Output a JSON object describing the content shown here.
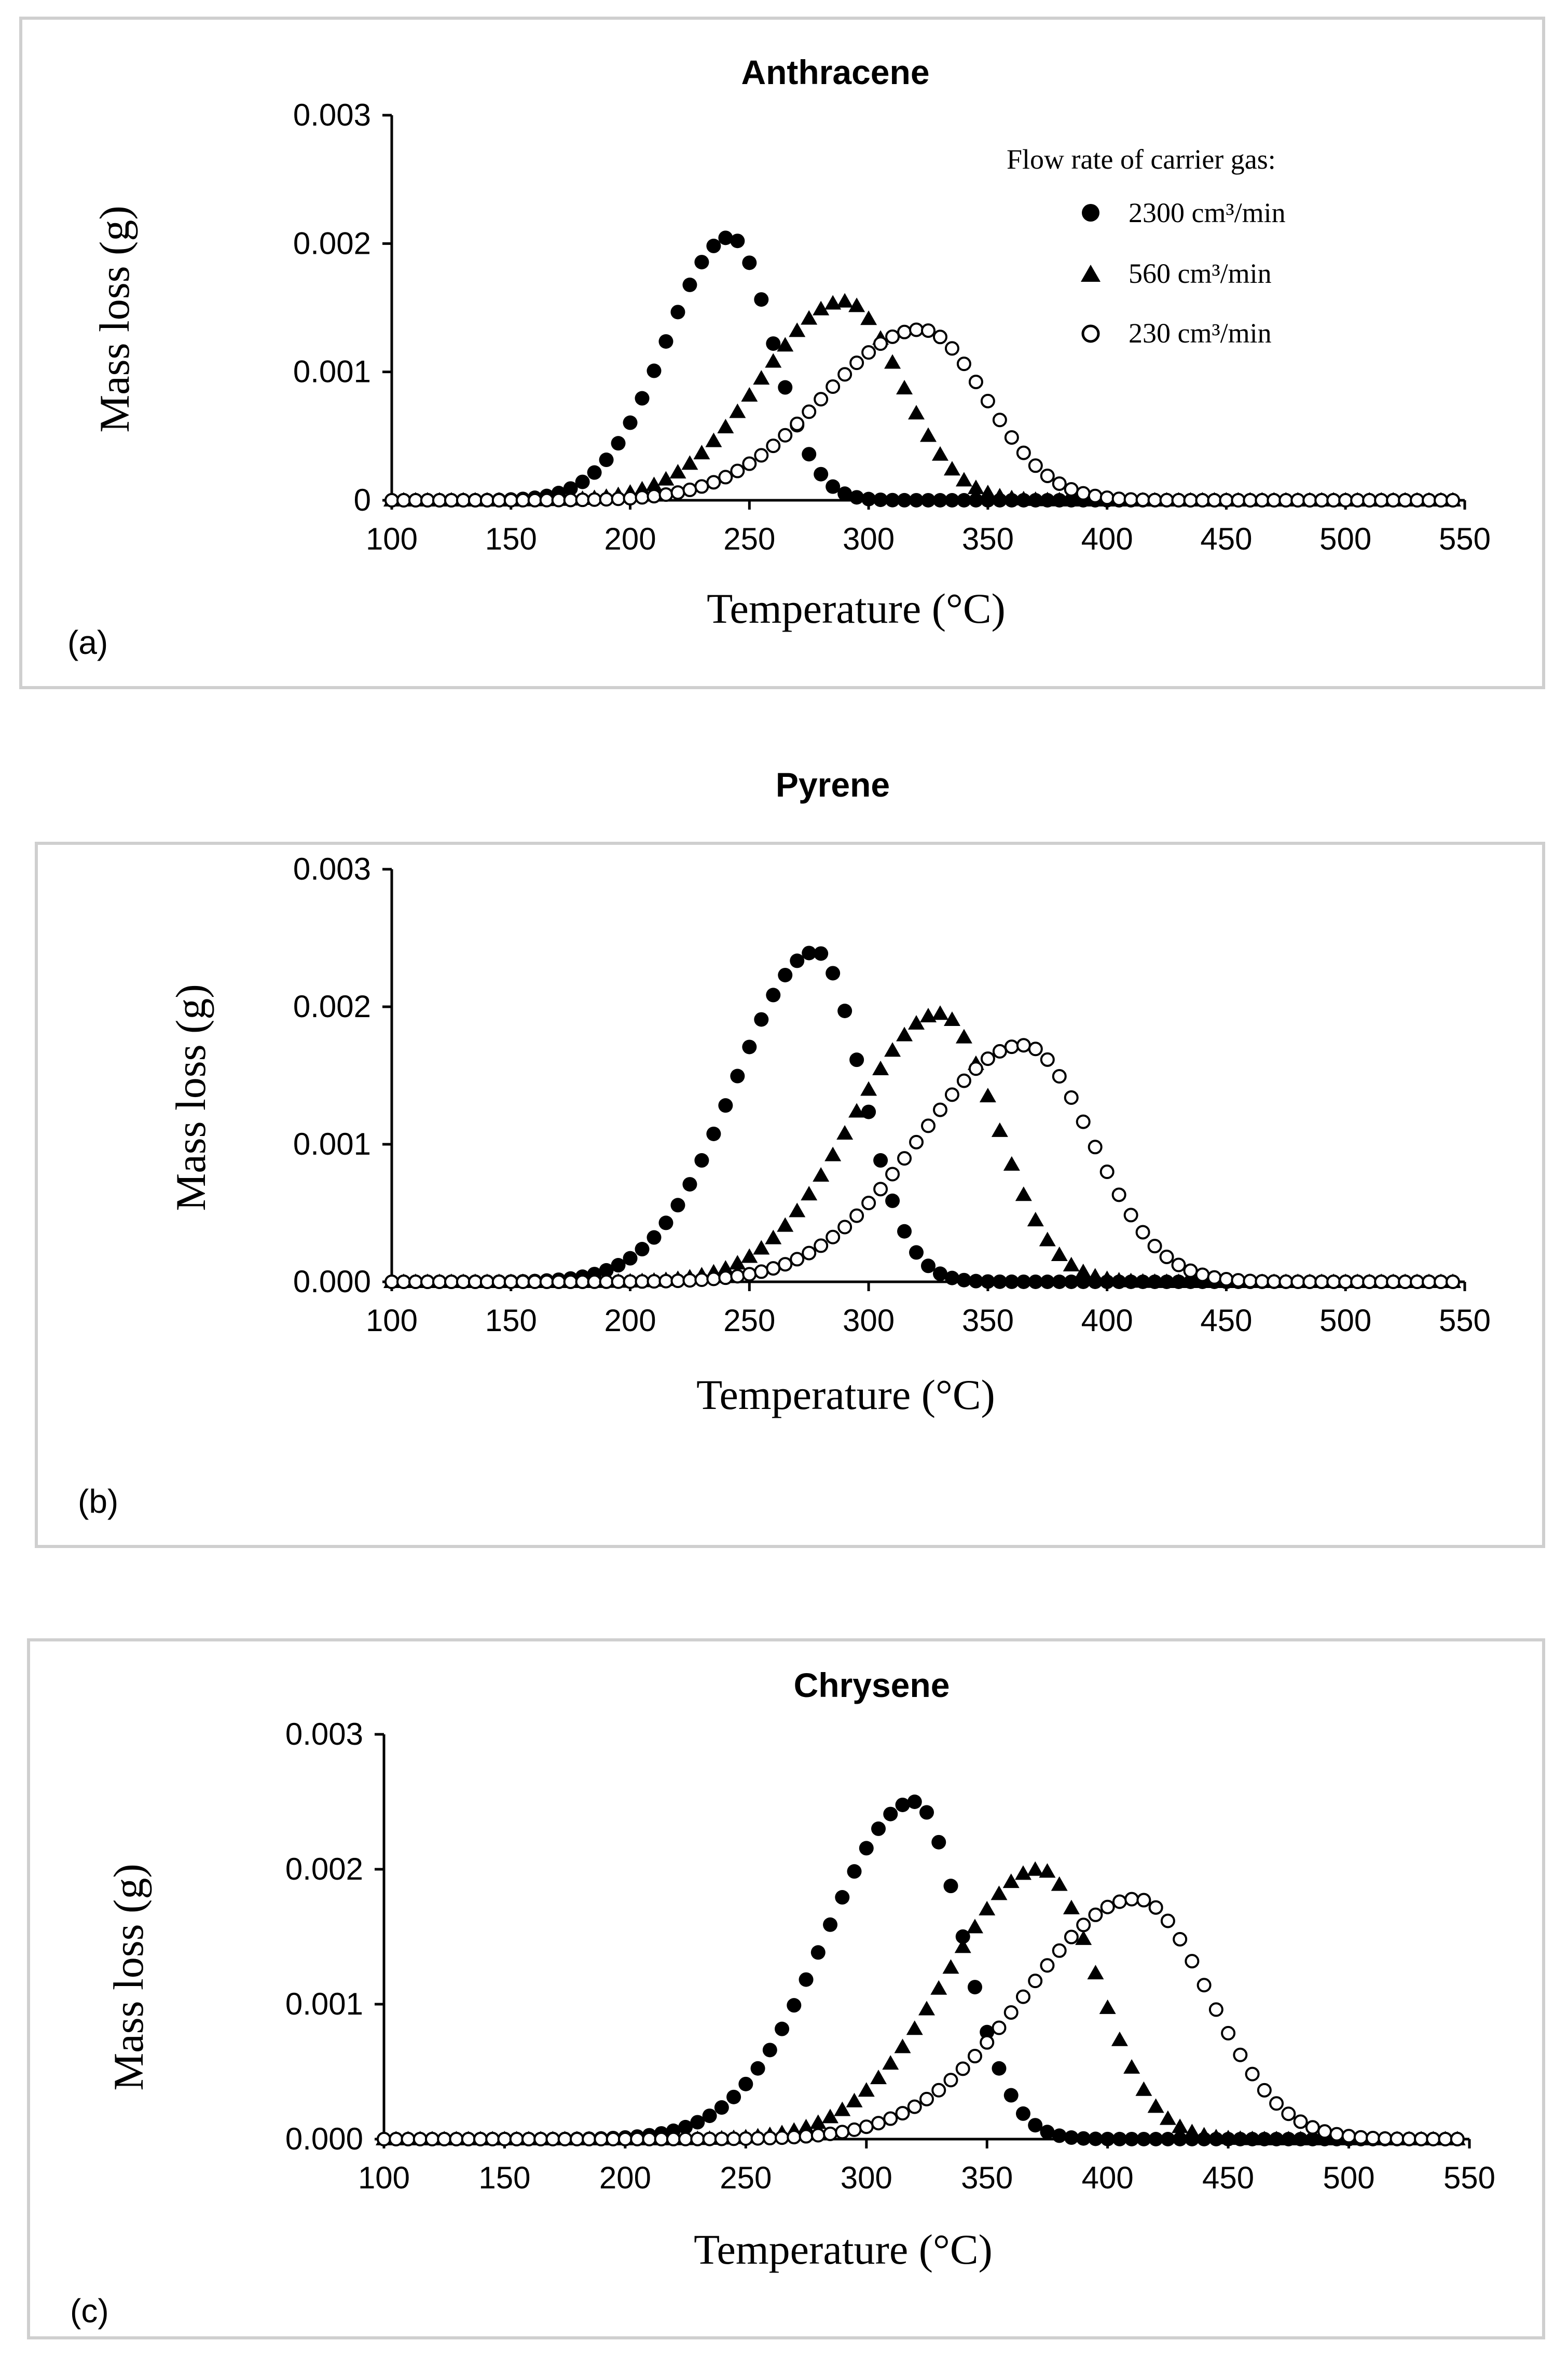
{
  "legend": {
    "title": "Flow rate of carrier gas:",
    "entries": [
      "2300 cm³/min",
      "560 cm³/min",
      "230 cm³/min"
    ]
  },
  "chart_data": [
    {
      "type": "scatter",
      "panel_label": "(a)",
      "title": "Anthracene",
      "xlabel": "Temperature (°C)",
      "ylabel": "Mass loss (g)",
      "xlim": [
        100,
        550
      ],
      "ylim": [
        0,
        0.003
      ],
      "xticks": [
        "100",
        "150",
        "200",
        "250",
        "300",
        "350",
        "400",
        "450",
        "500",
        "550"
      ],
      "yticks": [
        "0",
        "0.001",
        "0.002",
        "0.003"
      ],
      "x_start": 100,
      "x_step": 5,
      "x_end": 545,
      "series": [
        {
          "name": "2300 cm³/min",
          "marker": "circle-filled",
          "peak_x": 242,
          "peak_y": 0.00205,
          "left_width": 38,
          "right_width": 25
        },
        {
          "name": "560 cm³/min",
          "marker": "triangle-filled",
          "peak_x": 290,
          "peak_y": 0.00155,
          "left_width": 50,
          "right_width": 33
        },
        {
          "name": "230 cm³/min",
          "marker": "circle-open",
          "peak_x": 322,
          "peak_y": 0.00133,
          "left_width": 58,
          "right_width": 38
        }
      ]
    },
    {
      "type": "scatter",
      "panel_label": "(b)",
      "title": "Pyrene",
      "xlabel": "Temperature (°C)",
      "ylabel": "Mass loss  (g)",
      "xlim": [
        100,
        550
      ],
      "ylim": [
        0,
        0.003
      ],
      "xticks": [
        "100",
        "150",
        "200",
        "250",
        "300",
        "350",
        "400",
        "450",
        "500",
        "550"
      ],
      "yticks": [
        "0.000",
        "0.001",
        "0.002",
        "0.003"
      ],
      "x_start": 100,
      "x_step": 5,
      "x_end": 545,
      "series": [
        {
          "name": "2300 cm³/min",
          "marker": "circle-filled",
          "peak_x": 278,
          "peak_y": 0.0024,
          "left_width": 48,
          "right_width": 27
        },
        {
          "name": "560 cm³/min",
          "marker": "triangle-filled",
          "peak_x": 330,
          "peak_y": 0.00195,
          "left_width": 52,
          "right_width": 33
        },
        {
          "name": "230 cm³/min",
          "marker": "circle-open",
          "peak_x": 365,
          "peak_y": 0.00172,
          "left_width": 62,
          "right_width": 40
        }
      ]
    },
    {
      "type": "scatter",
      "panel_label": "(c)",
      "title": "Chrysene",
      "xlabel": "Temperature (°C)",
      "ylabel": "Mass loss (g)",
      "xlim": [
        100,
        550
      ],
      "ylim": [
        0,
        0.003
      ],
      "xticks": [
        "100",
        "150",
        "200",
        "250",
        "300",
        "350",
        "400",
        "450",
        "500",
        "550"
      ],
      "yticks": [
        "0.000",
        "0.001",
        "0.002",
        "0.003"
      ],
      "x_start": 100,
      "x_step": 5,
      "x_end": 545,
      "series": [
        {
          "name": "2300 cm³/min",
          "marker": "circle-filled",
          "peak_x": 320,
          "peak_y": 0.0025,
          "left_width": 52,
          "right_width": 28
        },
        {
          "name": "560 cm³/min",
          "marker": "triangle-filled",
          "peak_x": 372,
          "peak_y": 0.002,
          "left_width": 55,
          "right_width": 33
        },
        {
          "name": "230 cm³/min",
          "marker": "circle-open",
          "peak_x": 412,
          "peak_y": 0.00178,
          "left_width": 65,
          "right_width": 42
        }
      ]
    }
  ]
}
